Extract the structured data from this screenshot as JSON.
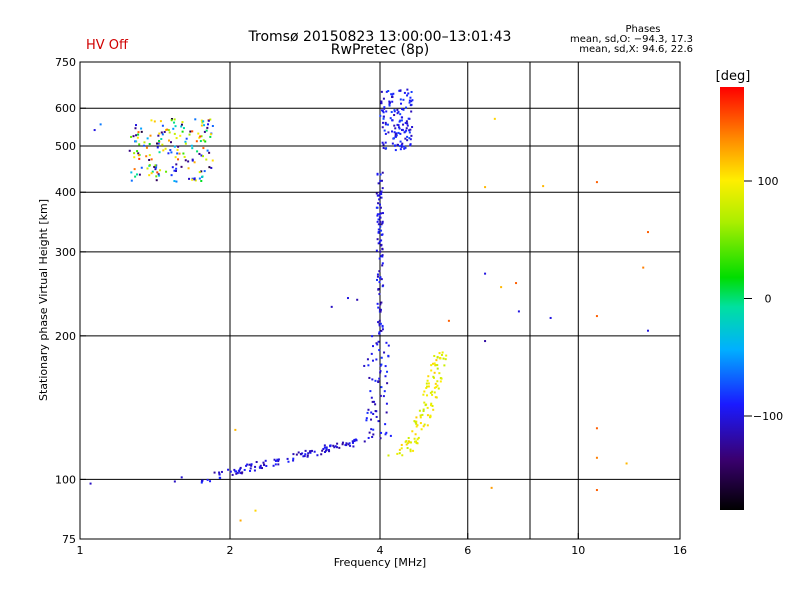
{
  "status": {
    "hv_label": "HV Off",
    "hv_color": "#d00000"
  },
  "header": {
    "title": "Tromsø 20150823 13:00:00–13:01:43",
    "subtitle": "RwPretec (8p)"
  },
  "phases_box": {
    "heading": "Phases",
    "line_o": "mean, sd,O: −94.3, 17.3",
    "line_x": "mean, sd,X:  94.6, 22.6"
  },
  "colorbar": {
    "unit_label": "[deg]",
    "ticks": [
      "100",
      "0",
      "−100"
    ],
    "tick_values": [
      100,
      0,
      -100
    ],
    "range": [
      -180,
      180
    ]
  },
  "chart_data": {
    "type": "scatter",
    "xlabel": "Frequency [MHz]",
    "ylabel": "Stationary phase Virtual Height [km]",
    "x_scale": "log",
    "y_scale": "log",
    "xlim": [
      1,
      16
    ],
    "ylim": [
      75,
      750
    ],
    "x_ticks": [
      1,
      2,
      4,
      6,
      10,
      16
    ],
    "x_tick_labels": [
      "1",
      "2",
      "4",
      "6",
      "10",
      "16"
    ],
    "x_grid": [
      2,
      4,
      6,
      8,
      10
    ],
    "y_ticks": [
      75,
      100,
      200,
      300,
      400,
      500,
      600,
      750
    ],
    "y_tick_labels": [
      "75",
      "100",
      "200",
      "300",
      "400",
      "500",
      "600",
      "750"
    ],
    "y_grid": [
      100,
      200,
      300,
      400,
      500,
      600
    ],
    "grid": true,
    "point_groups": [
      {
        "name": "O-mode low trace",
        "x_range": [
          1.75,
          3.6
        ],
        "y_range": [
          100,
          120
        ],
        "phase": -105,
        "count": 120
      },
      {
        "name": "O-mode vertical cusp",
        "x_range": [
          3.85,
          4.05
        ],
        "y_range": [
          120,
          460
        ],
        "phase": -100,
        "count": 160
      },
      {
        "name": "O-mode upper patch",
        "x_range": [
          4.0,
          4.65
        ],
        "y_range": [
          490,
          660
        ],
        "phase": -95,
        "count": 140
      },
      {
        "name": "X-mode trace",
        "x_range": [
          4.0,
          5.3
        ],
        "y_range": [
          112,
          185
        ],
        "phase": 95,
        "count": 110
      },
      {
        "name": "Low-frequency patch",
        "x_range": [
          1.25,
          1.85
        ],
        "y_range": [
          420,
          570
        ],
        "phase": 0,
        "count": 180
      }
    ],
    "scattered_points": [
      {
        "x": 2.05,
        "y": 127,
        "phase": 120
      },
      {
        "x": 2.1,
        "y": 82,
        "phase": 125
      },
      {
        "x": 2.25,
        "y": 86,
        "phase": 110
      },
      {
        "x": 1.55,
        "y": 99,
        "phase": -110
      },
      {
        "x": 1.6,
        "y": 101,
        "phase": -105
      },
      {
        "x": 3.2,
        "y": 230,
        "phase": -110
      },
      {
        "x": 3.45,
        "y": 240,
        "phase": -100
      },
      {
        "x": 3.6,
        "y": 238,
        "phase": -115
      },
      {
        "x": 6.5,
        "y": 270,
        "phase": -100
      },
      {
        "x": 6.5,
        "y": 195,
        "phase": -120
      },
      {
        "x": 6.5,
        "y": 410,
        "phase": 120
      },
      {
        "x": 6.7,
        "y": 96,
        "phase": 130
      },
      {
        "x": 6.8,
        "y": 570,
        "phase": 110
      },
      {
        "x": 7.0,
        "y": 253,
        "phase": 120
      },
      {
        "x": 7.5,
        "y": 258,
        "phase": 150
      },
      {
        "x": 7.6,
        "y": 225,
        "phase": -100
      },
      {
        "x": 8.5,
        "y": 412,
        "phase": 120
      },
      {
        "x": 8.8,
        "y": 218,
        "phase": -100
      },
      {
        "x": 10.9,
        "y": 420,
        "phase": 150
      },
      {
        "x": 10.9,
        "y": 220,
        "phase": 150
      },
      {
        "x": 10.9,
        "y": 128,
        "phase": 150
      },
      {
        "x": 10.9,
        "y": 95,
        "phase": 150
      },
      {
        "x": 10.9,
        "y": 111,
        "phase": 140
      },
      {
        "x": 12.5,
        "y": 108,
        "phase": 120
      },
      {
        "x": 13.5,
        "y": 278,
        "phase": 140
      },
      {
        "x": 13.8,
        "y": 330,
        "phase": 150
      },
      {
        "x": 13.8,
        "y": 205,
        "phase": -100
      },
      {
        "x": 1.05,
        "y": 98,
        "phase": -110
      },
      {
        "x": 1.07,
        "y": 540,
        "phase": -100
      },
      {
        "x": 1.1,
        "y": 555,
        "phase": -60
      },
      {
        "x": 5.5,
        "y": 215,
        "phase": 150
      }
    ]
  }
}
